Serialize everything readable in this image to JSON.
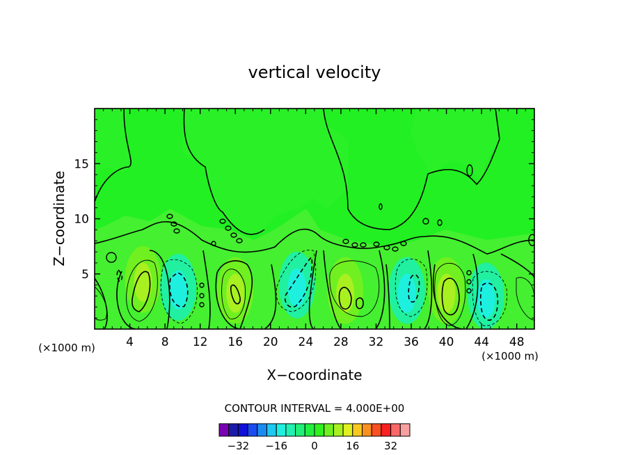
{
  "chart_data": {
    "type": "heatmap",
    "title": "vertical velocity",
    "xlabel": "X−coordinate",
    "ylabel": "Z−coordinate",
    "x_unit_left": "(×1000 m)",
    "x_unit_right": "(×1000 m)",
    "xlim": [
      0,
      50
    ],
    "ylim": [
      0,
      20
    ],
    "x_ticks": [
      4,
      8,
      12,
      16,
      20,
      24,
      28,
      32,
      36,
      40,
      44,
      48
    ],
    "y_ticks": [
      5,
      10,
      15
    ],
    "contour_interval_text": "CONTOUR INTERVAL = 4.000E+00",
    "colorbar": {
      "colors": [
        "#7a00b4",
        "#1c1ca8",
        "#1010d8",
        "#1a4cf0",
        "#1a8cf0",
        "#1ec8f0",
        "#1ef0e0",
        "#20f0b0",
        "#20f078",
        "#22f040",
        "#30f020",
        "#70f020",
        "#a8f020",
        "#e0f020",
        "#f8c820",
        "#f89020",
        "#f85020",
        "#f82020",
        "#f86868",
        "#f8a0a0"
      ],
      "labels": [
        {
          "text": "−32",
          "value": -32
        },
        {
          "text": "−16",
          "value": -16
        },
        {
          "text": "0",
          "value": 0
        },
        {
          "text": "16",
          "value": 16
        },
        {
          "text": "32",
          "value": 32
        }
      ],
      "vmin": -40,
      "vmax": 40
    },
    "regions": [
      {
        "x": 5.5,
        "z": 4.5,
        "w": 0.5,
        "kind": "up"
      },
      {
        "x": 9.5,
        "z": 3.8,
        "w": -0.6,
        "kind": "down"
      },
      {
        "x": 16.0,
        "z": 3.5,
        "w": 0.3,
        "kind": "up"
      },
      {
        "x": 23.0,
        "z": 4.0,
        "w": -0.5,
        "kind": "down"
      },
      {
        "x": 28.5,
        "z": 3.5,
        "w": 0.4,
        "kind": "up"
      },
      {
        "x": 35.5,
        "z": 3.5,
        "w": -0.5,
        "kind": "down"
      },
      {
        "x": 40.0,
        "z": 3.5,
        "w": 0.6,
        "kind": "up"
      },
      {
        "x": 44.5,
        "z": 3.0,
        "w": -0.8,
        "kind": "down"
      }
    ]
  }
}
